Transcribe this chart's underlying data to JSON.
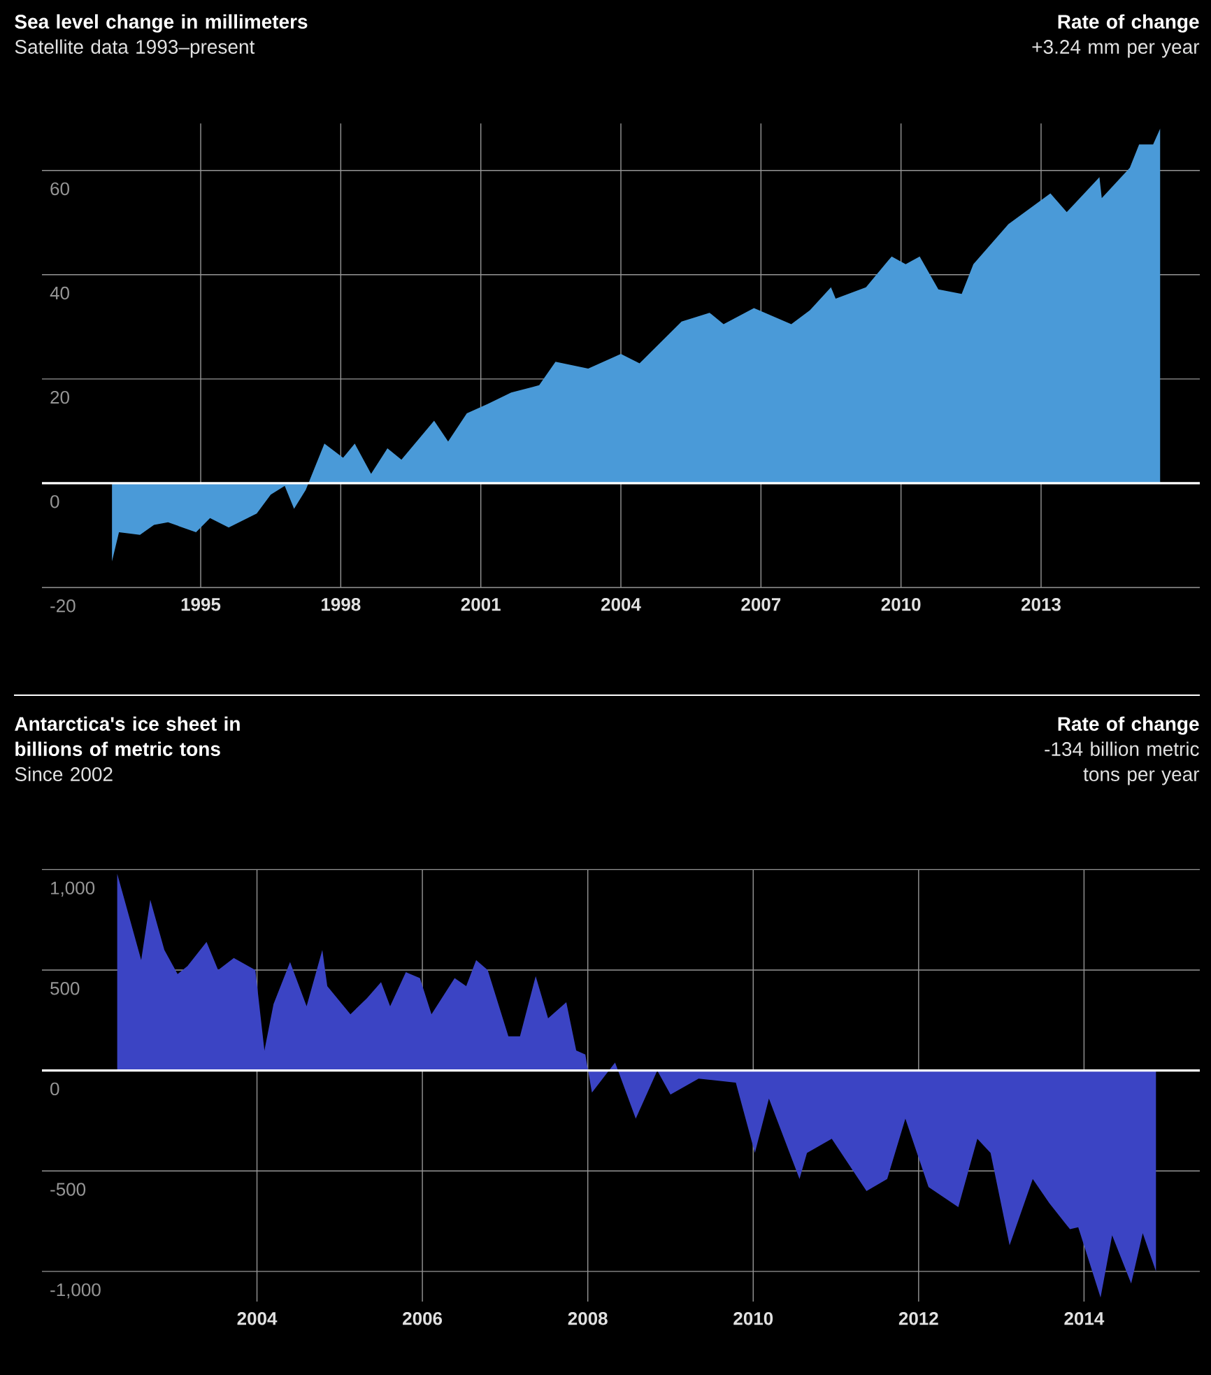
{
  "chart_data": [
    {
      "type": "area",
      "title": "Sea level change in millimeters",
      "subtitle": "Satellite data 1993–present",
      "annotations": [
        "Rate of change",
        "+3.24 mm per year"
      ],
      "x": [
        1993.1,
        1993.25,
        1993.7,
        1994.0,
        1994.3,
        1994.9,
        1995.2,
        1995.6,
        1996.2,
        1996.5,
        1996.8,
        1997.0,
        1997.25,
        1997.65,
        1998.05,
        1998.3,
        1998.65,
        1999.0,
        1999.3,
        2000.0,
        2000.3,
        2000.7,
        2001.15,
        2001.65,
        2002.25,
        2002.6,
        2003.3,
        2004.0,
        2004.4,
        2005.3,
        2005.9,
        2006.2,
        2006.85,
        2007.65,
        2008.05,
        2008.5,
        2008.6,
        2009.25,
        2009.8,
        2010.1,
        2010.4,
        2010.8,
        2011.3,
        2011.55,
        2012.3,
        2013.2,
        2013.55,
        2014.25,
        2014.3,
        2014.9,
        2015.1,
        2015.4,
        2015.55
      ],
      "series": [
        {
          "color": "#4a9ad8",
          "values": [
            -15,
            -9.4,
            -9.9,
            -8,
            -7.5,
            -9.4,
            -6.7,
            -8.5,
            -5.8,
            -2.2,
            -0.5,
            -4.9,
            -1.3,
            7.6,
            4.9,
            7.6,
            1.8,
            6.7,
            4.5,
            12,
            8,
            13.4,
            15.2,
            17.4,
            18.8,
            23.3,
            22,
            24.8,
            23,
            31,
            32.7,
            30.5,
            33.6,
            30.5,
            33.2,
            37.6,
            35.4,
            37.6,
            43.5,
            42,
            43.5,
            37.2,
            36.3,
            42,
            49.7,
            55.6,
            52,
            58.7,
            54.7,
            60.5,
            65,
            65,
            68
          ]
        }
      ],
      "xlim": [
        1991.6,
        2016.4
      ],
      "ylim": [
        -20,
        69
      ],
      "xticks": [
        1995,
        1998,
        2001,
        2004,
        2007,
        2010,
        2013
      ],
      "yticks": [
        -20,
        0,
        20,
        40,
        60
      ],
      "grid": true
    },
    {
      "type": "area",
      "title": "Antarctica's ice sheet in billions of metric tons",
      "subtitle": "Since 2002",
      "annotations": [
        "Rate of change",
        "-134 billion metric tons per year"
      ],
      "x": [
        2002.31,
        2002.6,
        2002.71,
        2002.88,
        2003.04,
        2003.16,
        2003.39,
        2003.53,
        2003.72,
        2003.98,
        2004.09,
        2004.2,
        2004.4,
        2004.6,
        2004.79,
        2004.85,
        2005.13,
        2005.33,
        2005.5,
        2005.61,
        2005.8,
        2005.97,
        2006.11,
        2006.39,
        2006.53,
        2006.65,
        2006.79,
        2007.04,
        2007.18,
        2007.37,
        2007.52,
        2007.74,
        2007.86,
        2007.97,
        2008.05,
        2008.33,
        2008.58,
        2008.84,
        2009.0,
        2009.34,
        2009.79,
        2010.02,
        2010.19,
        2010.56,
        2010.65,
        2010.95,
        2011.37,
        2011.62,
        2011.84,
        2012.12,
        2012.48,
        2012.71,
        2012.87,
        2013.1,
        2013.38,
        2013.58,
        2013.83,
        2013.93,
        2014.2,
        2014.34,
        2014.57,
        2014.71,
        2014.87
      ],
      "series": [
        {
          "color": "#3b44c4",
          "values": [
            980,
            550,
            850,
            600,
            480,
            520,
            640,
            500,
            560,
            500,
            100,
            330,
            540,
            320,
            600,
            420,
            280,
            360,
            440,
            320,
            490,
            460,
            280,
            460,
            420,
            550,
            500,
            170,
            170,
            470,
            260,
            340,
            100,
            80,
            -110,
            40,
            -240,
            0,
            -120,
            -40,
            -60,
            -410,
            -140,
            -540,
            -410,
            -340,
            -600,
            -540,
            -240,
            -580,
            -680,
            -340,
            -410,
            -870,
            -540,
            -660,
            -790,
            -780,
            -1130,
            -820,
            -1060,
            -810,
            -1000
          ]
        }
      ],
      "xlim": [
        2001.4,
        2015.4
      ],
      "ylim": [
        -1150,
        1000
      ],
      "xticks": [
        2004,
        2006,
        2008,
        2010,
        2012,
        2014
      ],
      "yticks": [
        {
          "value": -1000,
          "label": "-1,000"
        },
        -500,
        0,
        500,
        {
          "value": 1000,
          "label": "1,000"
        }
      ],
      "grid": true
    }
  ]
}
